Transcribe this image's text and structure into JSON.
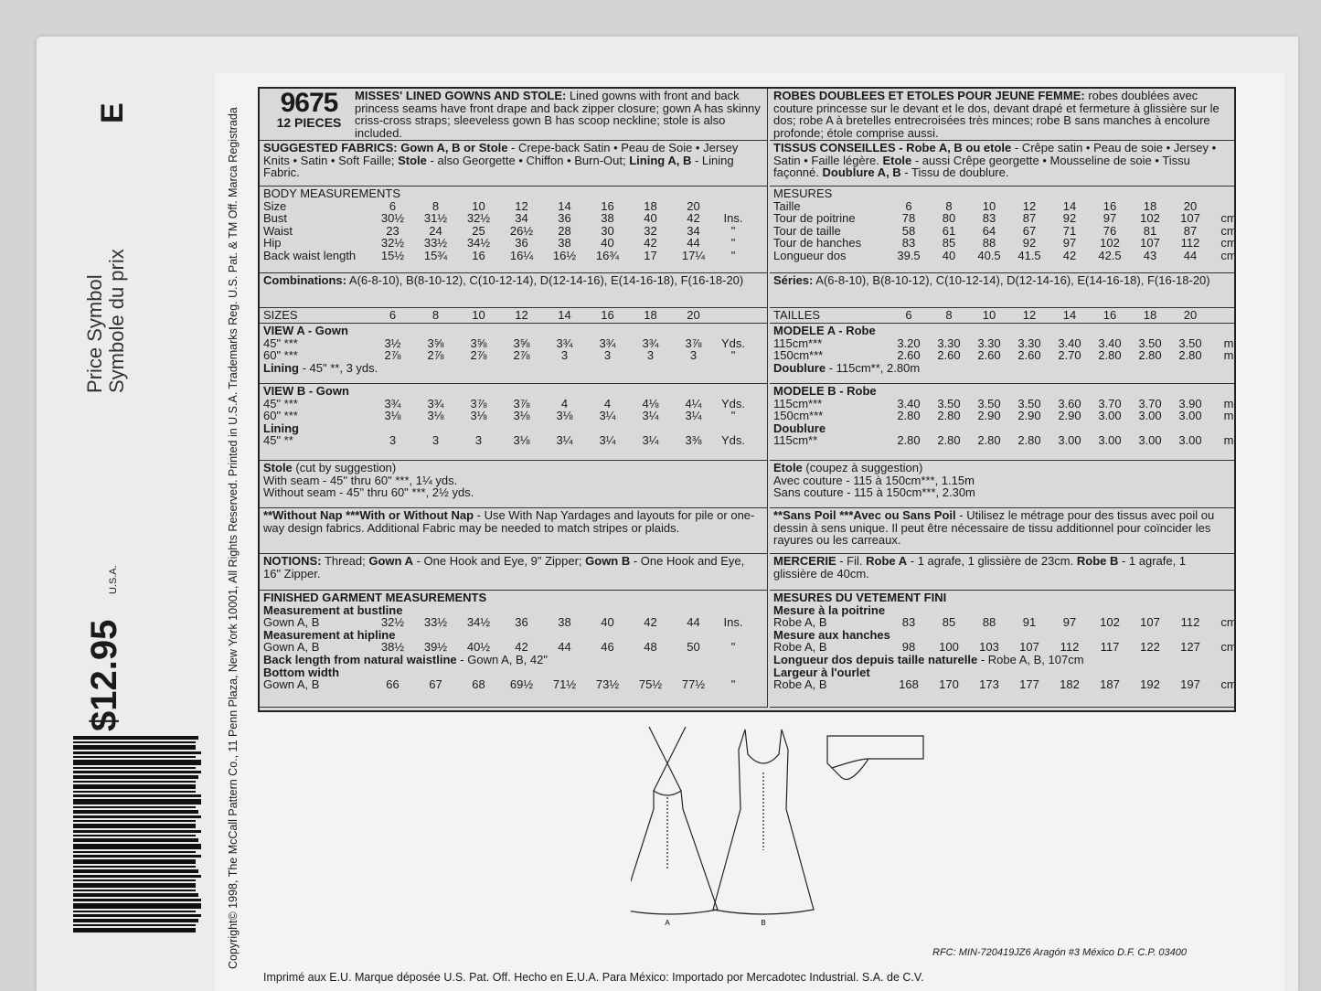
{
  "side": {
    "copyright": "Copyright© 1998, The McCall Pattern Co., 11 Penn Plaza, New York 10001, All Rights Reserved. Printed in U.S.A. Trademarks Reg. U.S. Pat. & TM Off. Marca Registrada",
    "price_symbol": "Price Symbol",
    "price_symbol_fr": "Symbole du prix",
    "symbol": "E",
    "price": "$12.95",
    "price_country": "U.S.A."
  },
  "en": {
    "header": {
      "number": "9675",
      "pieces": "12 PIECES",
      "segs": [
        {
          "b": true,
          "t": "MISSES' LINED GOWNS AND STOLE:"
        },
        {
          "t": " Lined gowns with front and back princess seams have front drape and back zipper closure; gown A has skinny criss-cross straps; sleeveless gown B has scoop neckline; stole is also included."
        }
      ]
    },
    "blocks": [
      {
        "lines": [
          {
            "segs": [
              {
                "b": true,
                "t": "SUGGESTED FABRICS: Gown A, B or Stole"
              },
              {
                "t": " - Crepe-back Satin • Peau de Soie • Jersey Knits • Satin • Soft Faille; "
              },
              {
                "b": true,
                "t": "Stole"
              },
              {
                "t": " - also Georgette • Chiffon • Burn-Out; "
              },
              {
                "b": true,
                "t": "Lining A, B"
              },
              {
                "t": " - Lining Fabric."
              }
            ]
          }
        ]
      },
      {
        "lines": [
          {
            "label": "BODY MEASUREMENTS"
          },
          {
            "label": "Size",
            "values": [
              "6",
              "8",
              "10",
              "12",
              "14",
              "16",
              "18",
              "20"
            ],
            "unit": ""
          },
          {
            "label": "Bust",
            "values": [
              "30½",
              "31½",
              "32½",
              "34",
              "36",
              "38",
              "40",
              "42"
            ],
            "unit": "Ins."
          },
          {
            "label": "Waist",
            "values": [
              "23",
              "24",
              "25",
              "26½",
              "28",
              "30",
              "32",
              "34"
            ],
            "unit": "\""
          },
          {
            "label": "Hip",
            "values": [
              "32½",
              "33½",
              "34½",
              "36",
              "38",
              "40",
              "42",
              "44"
            ],
            "unit": "\""
          },
          {
            "label": "Back waist length",
            "values": [
              "15½",
              "15¾",
              "16",
              "16¼",
              "16½",
              "16¾",
              "17",
              "17¼"
            ],
            "unit": "\""
          }
        ]
      },
      {
        "lines": [
          {
            "segs": [
              {
                "b": true,
                "t": "Combinations:"
              },
              {
                "t": " A(6-8-10), B(8-10-12), C(10-12-14), D(12-14-16), E(14-16-18), F(16-18-20)"
              }
            ]
          }
        ]
      },
      {
        "lines": [
          {
            "label": "SIZES",
            "values": [
              "6",
              "8",
              "10",
              "12",
              "14",
              "16",
              "18",
              "20"
            ],
            "unit": ""
          }
        ]
      },
      {
        "lines": [
          {
            "label": "VIEW A - Gown",
            "bold": true
          },
          {
            "label": "45\" ***",
            "values": [
              "3½",
              "3⅝",
              "3⅝",
              "3⅝",
              "3¾",
              "3¾",
              "3¾",
              "3⅞"
            ],
            "unit": "Yds."
          },
          {
            "label": "60\" ***",
            "values": [
              "2⅞",
              "2⅞",
              "2⅞",
              "2⅞",
              "3",
              "3",
              "3",
              "3"
            ],
            "unit": "\""
          },
          {
            "segs": [
              {
                "b": true,
                "t": "Lining"
              },
              {
                "t": " - 45\" **, 3 yds."
              }
            ]
          }
        ]
      },
      {
        "lines": [
          {
            "label": "VIEW B - Gown",
            "bold": true
          },
          {
            "label": "45\" ***",
            "values": [
              "3¾",
              "3¾",
              "3⅞",
              "3⅞",
              "4",
              "4",
              "4⅛",
              "4¼"
            ],
            "unit": "Yds."
          },
          {
            "label": "60\" ***",
            "values": [
              "3⅛",
              "3⅛",
              "3⅛",
              "3⅛",
              "3⅛",
              "3¼",
              "3¼",
              "3¼"
            ],
            "unit": "\""
          },
          {
            "label": "Lining",
            "bold": true
          },
          {
            "label": "45\" **",
            "values": [
              "3",
              "3",
              "3",
              "3⅛",
              "3¼",
              "3¼",
              "3¼",
              "3⅜"
            ],
            "unit": "Yds."
          }
        ]
      },
      {
        "lines": [
          {
            "segs": [
              {
                "b": true,
                "t": "Stole"
              },
              {
                "t": " (cut by suggestion)"
              }
            ]
          },
          {
            "segs": [
              {
                "t": "With seam - 45\" thru 60\" ***, 1¼ yds."
              }
            ]
          },
          {
            "segs": [
              {
                "t": "Without seam - 45\" thru 60\" ***, 2½ yds."
              }
            ]
          }
        ]
      },
      {
        "lines": [
          {
            "segs": [
              {
                "b": true,
                "t": "**Without Nap ***With or Without Nap"
              },
              {
                "t": " - Use With Nap Yardages and layouts for pile or one-way design fabrics. Additional Fabric may be needed to match stripes or plaids."
              }
            ]
          }
        ]
      },
      {
        "lines": [
          {
            "segs": [
              {
                "b": true,
                "t": "NOTIONS:"
              },
              {
                "t": " Thread; "
              },
              {
                "b": true,
                "t": "Gown A"
              },
              {
                "t": " - One Hook and Eye, 9\" Zipper; "
              },
              {
                "b": true,
                "t": "Gown B"
              },
              {
                "t": " - One Hook and Eye, 16\" Zipper."
              }
            ]
          }
        ]
      },
      {
        "lines": [
          {
            "label": "FINISHED GARMENT MEASUREMENTS",
            "bold": true
          },
          {
            "label": "Measurement at bustline",
            "bold": true
          },
          {
            "label": "Gown A, B",
            "values": [
              "32½",
              "33½",
              "34½",
              "36",
              "38",
              "40",
              "42",
              "44"
            ],
            "unit": "Ins."
          },
          {
            "label": "Measurement at hipline",
            "bold": true
          },
          {
            "label": "Gown A, B",
            "values": [
              "38½",
              "39½",
              "40½",
              "42",
              "44",
              "46",
              "48",
              "50"
            ],
            "unit": "\""
          },
          {
            "segs": [
              {
                "b": true,
                "t": "Back length from natural waistline"
              },
              {
                "t": " - Gown A, B, 42\""
              }
            ]
          },
          {
            "label": "Bottom width",
            "bold": true
          },
          {
            "label": "Gown A, B",
            "values": [
              "66",
              "67",
              "68",
              "69½",
              "71½",
              "73½",
              "75½",
              "77½"
            ],
            "unit": "\""
          }
        ]
      }
    ]
  },
  "fr": {
    "header": {
      "segs": [
        {
          "b": true,
          "t": "ROBES DOUBLEES ET ETOLES POUR JEUNE FEMME:"
        },
        {
          "t": " robes doublées avec couture princesse sur le devant et le dos, devant drapé et fermeture à glissière sur le dos; robe A à bretelles entrecroisées très minces; robe B sans manches à encolure profonde; étole comprise aussi."
        }
      ]
    },
    "blocks": [
      {
        "lines": [
          {
            "segs": [
              {
                "b": true,
                "t": "TISSUS CONSEILLES - Robe A, B ou etole"
              },
              {
                "t": " - Crêpe satin • Peau de soie • Jersey • Satin • Faille légère. "
              },
              {
                "b": true,
                "t": "Etole"
              },
              {
                "t": " - aussi Crêpe georgette • Mousseline de soie • Tissu façonné. "
              },
              {
                "b": true,
                "t": "Doublure A, B"
              },
              {
                "t": " - Tissu de doublure."
              }
            ]
          }
        ]
      },
      {
        "lines": [
          {
            "label": "MESURES"
          },
          {
            "label": "Taille",
            "values": [
              "6",
              "8",
              "10",
              "12",
              "14",
              "16",
              "18",
              "20"
            ],
            "unit": ""
          },
          {
            "label": "Tour de poitrine",
            "values": [
              "78",
              "80",
              "83",
              "87",
              "92",
              "97",
              "102",
              "107"
            ],
            "unit": "cm"
          },
          {
            "label": "Tour de taille",
            "values": [
              "58",
              "61",
              "64",
              "67",
              "71",
              "76",
              "81",
              "87"
            ],
            "unit": "cm"
          },
          {
            "label": "Tour de hanches",
            "values": [
              "83",
              "85",
              "88",
              "92",
              "97",
              "102",
              "107",
              "112"
            ],
            "unit": "cm"
          },
          {
            "label": "Longueur dos",
            "values": [
              "39.5",
              "40",
              "40.5",
              "41.5",
              "42",
              "42.5",
              "43",
              "44"
            ],
            "unit": "cm"
          }
        ]
      },
      {
        "lines": [
          {
            "segs": [
              {
                "b": true,
                "t": "Séries:"
              },
              {
                "t": "  A(6-8-10), B(8-10-12), C(10-12-14), D(12-14-16), E(14-16-18), F(16-18-20)"
              }
            ]
          }
        ]
      },
      {
        "lines": [
          {
            "label": "TAILLES",
            "values": [
              "6",
              "8",
              "10",
              "12",
              "14",
              "16",
              "18",
              "20"
            ],
            "unit": ""
          }
        ]
      },
      {
        "lines": [
          {
            "label": "MODELE A - Robe",
            "bold": true
          },
          {
            "label": "115cm***",
            "values": [
              "3.20",
              "3.30",
              "3.30",
              "3.30",
              "3.40",
              "3.40",
              "3.50",
              "3.50"
            ],
            "unit": "m"
          },
          {
            "label": "150cm***",
            "values": [
              "2.60",
              "2.60",
              "2.60",
              "2.60",
              "2.70",
              "2.80",
              "2.80",
              "2.80"
            ],
            "unit": "m"
          },
          {
            "segs": [
              {
                "b": true,
                "t": "Doublure"
              },
              {
                "t": " - 115cm**, 2.80m"
              }
            ]
          }
        ]
      },
      {
        "lines": [
          {
            "label": "MODELE B - Robe",
            "bold": true
          },
          {
            "label": "115cm***",
            "values": [
              "3.40",
              "3.50",
              "3.50",
              "3.50",
              "3.60",
              "3.70",
              "3.70",
              "3.90"
            ],
            "unit": "m"
          },
          {
            "label": "150cm***",
            "values": [
              "2.80",
              "2.80",
              "2.90",
              "2.90",
              "2.90",
              "3.00",
              "3.00",
              "3.00"
            ],
            "unit": "m"
          },
          {
            "label": "Doublure",
            "bold": true
          },
          {
            "label": "115cm**",
            "values": [
              "2.80",
              "2.80",
              "2.80",
              "2.80",
              "3.00",
              "3.00",
              "3.00",
              "3.00"
            ],
            "unit": "m"
          }
        ]
      },
      {
        "lines": [
          {
            "segs": [
              {
                "b": true,
                "t": "Etole"
              },
              {
                "t": " (coupez à suggestion)"
              }
            ]
          },
          {
            "segs": [
              {
                "t": "Avec couture - 115 à 150cm***, 1.15m"
              }
            ]
          },
          {
            "segs": [
              {
                "t": "Sans couture - 115 à 150cm***, 2.30m"
              }
            ]
          }
        ]
      },
      {
        "lines": [
          {
            "segs": [
              {
                "b": true,
                "t": "**Sans Poil ***Avec ou Sans Poil"
              },
              {
                "t": " - Utilisez le métrage pour des tissus avec poil ou dessin à sens unique. Il peut être nécessaire de tissu additionnel pour coïncider les rayures ou les carreaux."
              }
            ]
          }
        ]
      },
      {
        "lines": [
          {
            "segs": [
              {
                "b": true,
                "t": "MERCERIE"
              },
              {
                "t": " - Fil. "
              },
              {
                "b": true,
                "t": "Robe A"
              },
              {
                "t": " - 1 agrafe, 1 glissière de 23cm. "
              },
              {
                "b": true,
                "t": "Robe B"
              },
              {
                "t": " - 1 agrafe, 1 glissière de 40cm."
              }
            ]
          }
        ]
      },
      {
        "lines": [
          {
            "label": "MESURES DU VETEMENT FINI",
            "bold": true
          },
          {
            "label": "Mesure à la poitrine",
            "bold": true
          },
          {
            "label": "Robe A, B",
            "values": [
              "83",
              "85",
              "88",
              "91",
              "97",
              "102",
              "107",
              "112"
            ],
            "unit": "cm"
          },
          {
            "label": "Mesure aux hanches",
            "bold": true
          },
          {
            "label": "Robe A, B",
            "values": [
              "98",
              "100",
              "103",
              "107",
              "112",
              "117",
              "122",
              "127"
            ],
            "unit": "cm"
          },
          {
            "segs": [
              {
                "b": true,
                "t": "Longueur dos depuis taille naturelle"
              },
              {
                "t": " - Robe A, B, 107cm"
              }
            ]
          },
          {
            "label": "Largeur à l'ourlet",
            "bold": true
          },
          {
            "label": "Robe A, B",
            "values": [
              "168",
              "170",
              "173",
              "177",
              "182",
              "187",
              "192",
              "197"
            ],
            "unit": "cm"
          }
        ]
      }
    ]
  },
  "illustrations": {
    "view_a_label": "A",
    "view_b_label": "B"
  },
  "footer": {
    "imprint": "Imprimé aux E.U. Marque déposée U.S. Pat. Off. Hecho en E.U.A. Para México: Importado por Mercadotec Industrial. S.A. de C.V.",
    "rfc": "RFC: MIN-720419JZ6  Aragón #3 México D.F.  C.P. 03400"
  }
}
